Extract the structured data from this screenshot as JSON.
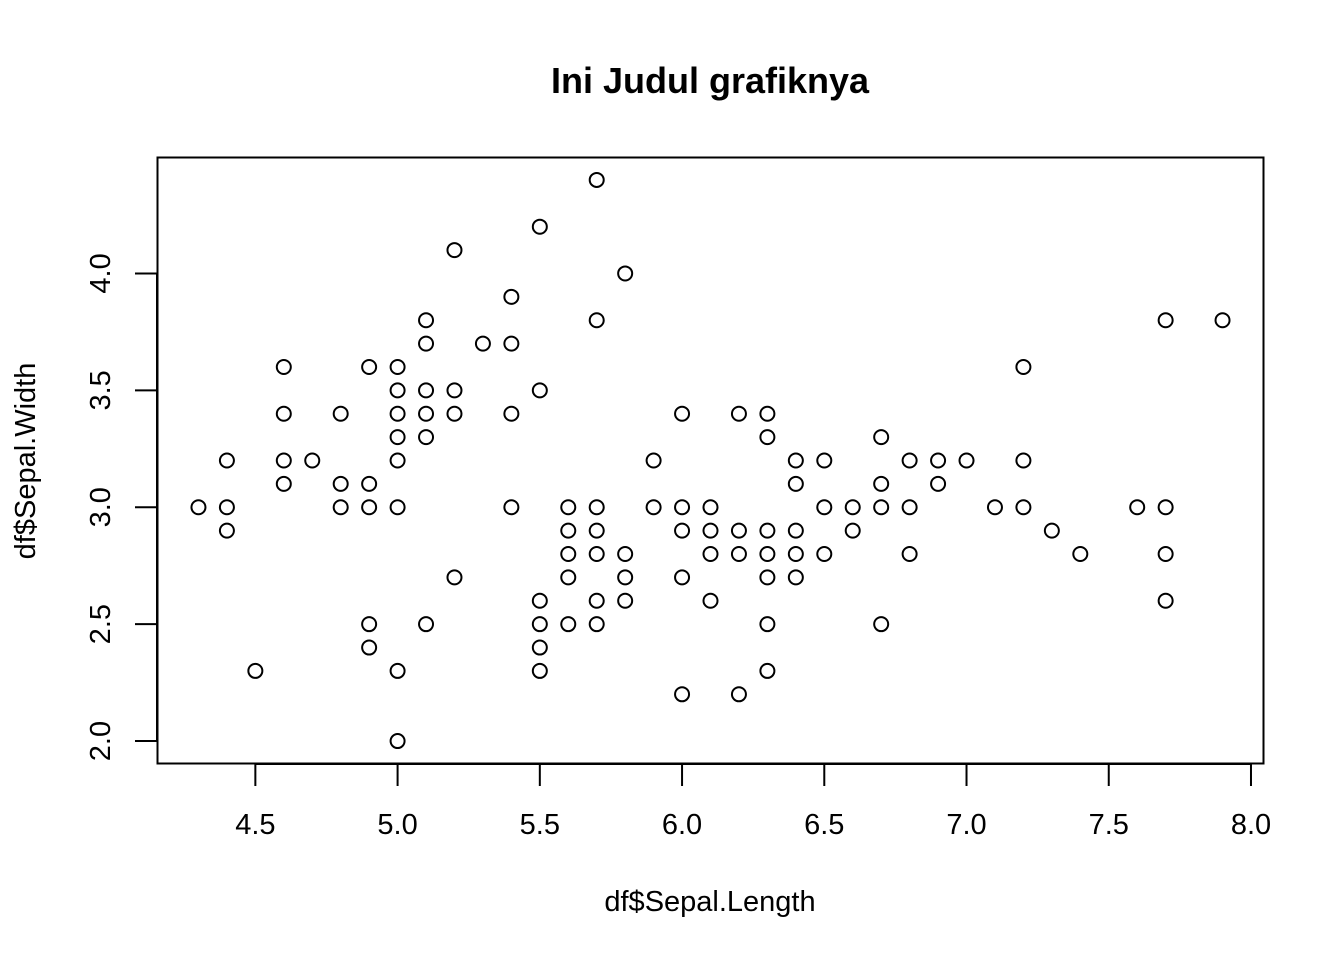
{
  "chart_data": {
    "type": "scatter",
    "title": "Ini Judul grafiknya",
    "xlabel": "df$Sepal.Length",
    "ylabel": "df$Sepal.Width",
    "xlim": [
      4.3,
      7.9
    ],
    "ylim": [
      2.0,
      4.4
    ],
    "x_ticks": [
      "4.5",
      "5.0",
      "5.5",
      "6.0",
      "6.5",
      "7.0",
      "7.5",
      "8.0"
    ],
    "y_ticks": [
      "2.0",
      "2.5",
      "3.0",
      "3.5",
      "4.0"
    ],
    "grid": false,
    "legend": "none",
    "marker": "open-circle",
    "colors": {
      "marker": "#000000",
      "axes": "#000000",
      "background": "#ffffff"
    },
    "points": [
      [
        4.3,
        3.0
      ],
      [
        4.4,
        3.2
      ],
      [
        4.4,
        3.0
      ],
      [
        4.4,
        2.9
      ],
      [
        4.5,
        2.3
      ],
      [
        4.6,
        3.6
      ],
      [
        4.6,
        3.4
      ],
      [
        4.6,
        3.2
      ],
      [
        4.6,
        3.1
      ],
      [
        4.7,
        3.2
      ],
      [
        4.8,
        3.4
      ],
      [
        4.8,
        3.1
      ],
      [
        4.8,
        3.0
      ],
      [
        4.9,
        3.6
      ],
      [
        4.9,
        3.1
      ],
      [
        4.9,
        3.0
      ],
      [
        4.9,
        2.5
      ],
      [
        4.9,
        2.4
      ],
      [
        5.0,
        3.6
      ],
      [
        5.0,
        3.5
      ],
      [
        5.0,
        3.4
      ],
      [
        5.0,
        3.3
      ],
      [
        5.0,
        3.2
      ],
      [
        5.0,
        3.0
      ],
      [
        5.0,
        2.3
      ],
      [
        5.0,
        2.0
      ],
      [
        5.1,
        3.8
      ],
      [
        5.1,
        3.7
      ],
      [
        5.1,
        3.5
      ],
      [
        5.1,
        3.4
      ],
      [
        5.1,
        3.3
      ],
      [
        5.1,
        2.5
      ],
      [
        5.2,
        4.1
      ],
      [
        5.2,
        3.5
      ],
      [
        5.2,
        3.4
      ],
      [
        5.2,
        2.7
      ],
      [
        5.3,
        3.7
      ],
      [
        5.4,
        3.9
      ],
      [
        5.4,
        3.7
      ],
      [
        5.4,
        3.4
      ],
      [
        5.4,
        3.0
      ],
      [
        5.5,
        4.2
      ],
      [
        5.5,
        3.5
      ],
      [
        5.5,
        2.6
      ],
      [
        5.5,
        2.5
      ],
      [
        5.5,
        2.4
      ],
      [
        5.5,
        2.3
      ],
      [
        5.6,
        3.0
      ],
      [
        5.6,
        2.9
      ],
      [
        5.6,
        2.8
      ],
      [
        5.6,
        2.7
      ],
      [
        5.6,
        2.5
      ],
      [
        5.7,
        4.4
      ],
      [
        5.7,
        3.8
      ],
      [
        5.7,
        3.0
      ],
      [
        5.7,
        2.9
      ],
      [
        5.7,
        2.8
      ],
      [
        5.7,
        2.6
      ],
      [
        5.7,
        2.5
      ],
      [
        5.8,
        4.0
      ],
      [
        5.8,
        2.8
      ],
      [
        5.8,
        2.7
      ],
      [
        5.8,
        2.6
      ],
      [
        5.9,
        3.2
      ],
      [
        5.9,
        3.0
      ],
      [
        6.0,
        3.4
      ],
      [
        6.0,
        3.0
      ],
      [
        6.0,
        2.9
      ],
      [
        6.0,
        2.7
      ],
      [
        6.0,
        2.2
      ],
      [
        6.1,
        3.0
      ],
      [
        6.1,
        2.9
      ],
      [
        6.1,
        2.8
      ],
      [
        6.1,
        2.6
      ],
      [
        6.2,
        3.4
      ],
      [
        6.2,
        2.9
      ],
      [
        6.2,
        2.8
      ],
      [
        6.2,
        2.2
      ],
      [
        6.3,
        3.4
      ],
      [
        6.3,
        3.3
      ],
      [
        6.3,
        2.9
      ],
      [
        6.3,
        2.8
      ],
      [
        6.3,
        2.7
      ],
      [
        6.3,
        2.5
      ],
      [
        6.3,
        2.3
      ],
      [
        6.4,
        3.2
      ],
      [
        6.4,
        3.1
      ],
      [
        6.4,
        2.9
      ],
      [
        6.4,
        2.8
      ],
      [
        6.4,
        2.7
      ],
      [
        6.5,
        3.2
      ],
      [
        6.5,
        3.0
      ],
      [
        6.5,
        2.8
      ],
      [
        6.6,
        3.0
      ],
      [
        6.6,
        2.9
      ],
      [
        6.7,
        3.3
      ],
      [
        6.7,
        3.1
      ],
      [
        6.7,
        3.0
      ],
      [
        6.7,
        2.5
      ],
      [
        6.8,
        3.2
      ],
      [
        6.8,
        3.0
      ],
      [
        6.8,
        2.8
      ],
      [
        6.9,
        3.2
      ],
      [
        6.9,
        3.1
      ],
      [
        7.0,
        3.2
      ],
      [
        7.1,
        3.0
      ],
      [
        7.2,
        3.6
      ],
      [
        7.2,
        3.2
      ],
      [
        7.2,
        3.0
      ],
      [
        7.3,
        2.9
      ],
      [
        7.4,
        2.8
      ],
      [
        7.6,
        3.0
      ],
      [
        7.7,
        3.8
      ],
      [
        7.7,
        3.0
      ],
      [
        7.7,
        2.8
      ],
      [
        7.7,
        2.6
      ],
      [
        7.9,
        3.8
      ]
    ]
  }
}
